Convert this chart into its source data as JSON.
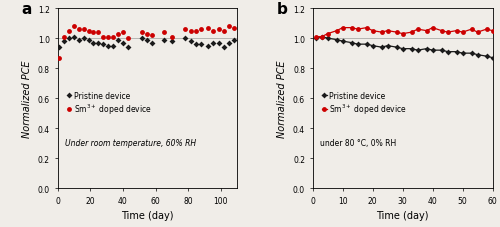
{
  "panel_a": {
    "label": "a",
    "xlabel": "Time (day)",
    "ylabel": "Normalized PCE",
    "xlim": [
      0,
      110
    ],
    "ylim": [
      0.0,
      1.2
    ],
    "yticks": [
      0.0,
      0.2,
      0.4,
      0.6,
      0.8,
      1.0,
      1.2
    ],
    "xticks": [
      0,
      20,
      40,
      60,
      80,
      100
    ],
    "annotation": "Under room temperature, 60% RH",
    "hline": 1.0,
    "has_lines": false,
    "pristine_x": [
      1,
      4,
      7,
      10,
      13,
      16,
      19,
      22,
      25,
      28,
      31,
      34,
      37,
      40,
      43,
      52,
      55,
      58,
      65,
      70,
      78,
      82,
      85,
      88,
      92,
      95,
      99,
      102,
      105,
      108
    ],
    "pristine_y": [
      0.94,
      0.98,
      1.0,
      1.01,
      0.99,
      1.0,
      0.99,
      0.97,
      0.97,
      0.96,
      0.95,
      0.95,
      0.99,
      0.97,
      0.94,
      1.0,
      0.99,
      0.97,
      0.99,
      0.98,
      1.0,
      0.98,
      0.96,
      0.96,
      0.95,
      0.97,
      0.97,
      0.94,
      0.97,
      0.99
    ],
    "sm_x": [
      1,
      4,
      7,
      10,
      13,
      16,
      19,
      22,
      25,
      28,
      31,
      34,
      37,
      40,
      43,
      52,
      55,
      58,
      65,
      70,
      78,
      82,
      85,
      88,
      92,
      95,
      99,
      102,
      105,
      108
    ],
    "sm_y": [
      0.87,
      1.01,
      1.05,
      1.08,
      1.06,
      1.06,
      1.05,
      1.04,
      1.04,
      1.01,
      1.01,
      1.01,
      1.03,
      1.04,
      1.0,
      1.04,
      1.03,
      1.02,
      1.04,
      1.01,
      1.06,
      1.05,
      1.05,
      1.06,
      1.07,
      1.05,
      1.06,
      1.05,
      1.08,
      1.07
    ]
  },
  "panel_b": {
    "label": "b",
    "xlabel": "Time (day)",
    "ylabel": "Normalized PCE",
    "xlim": [
      0,
      60
    ],
    "ylim": [
      0.0,
      1.2
    ],
    "yticks": [
      0.0,
      0.2,
      0.4,
      0.6,
      0.8,
      1.0,
      1.2
    ],
    "xticks": [
      0,
      10,
      20,
      30,
      40,
      50,
      60
    ],
    "annotation": "under 80 °C, 0% RH",
    "hline": 1.0,
    "has_lines": true,
    "pristine_x": [
      1,
      3,
      5,
      8,
      10,
      13,
      15,
      18,
      20,
      23,
      25,
      28,
      30,
      33,
      35,
      38,
      40,
      43,
      45,
      48,
      50,
      53,
      55,
      58,
      60
    ],
    "pristine_y": [
      1.0,
      1.01,
      1.0,
      0.99,
      0.98,
      0.97,
      0.96,
      0.96,
      0.95,
      0.94,
      0.95,
      0.94,
      0.93,
      0.93,
      0.92,
      0.93,
      0.92,
      0.92,
      0.91,
      0.91,
      0.9,
      0.9,
      0.89,
      0.88,
      0.87
    ],
    "sm_x": [
      1,
      3,
      5,
      8,
      10,
      13,
      15,
      18,
      20,
      23,
      25,
      28,
      30,
      33,
      35,
      38,
      40,
      43,
      45,
      48,
      50,
      53,
      55,
      58,
      60
    ],
    "sm_y": [
      1.01,
      1.01,
      1.03,
      1.05,
      1.07,
      1.07,
      1.06,
      1.07,
      1.05,
      1.04,
      1.05,
      1.04,
      1.03,
      1.04,
      1.06,
      1.05,
      1.07,
      1.05,
      1.04,
      1.05,
      1.04,
      1.06,
      1.04,
      1.06,
      1.05
    ]
  },
  "pristine_color": "#1a1a1a",
  "sm_color": "#cc0000",
  "pristine_label": "Pristine device",
  "sm_label": "Sm$^{3+}$ doped device",
  "marker_size": 3.0,
  "line_width": 0.9,
  "bg_color": "#f0ede8",
  "font_size": 7,
  "legend_font_size": 5.5,
  "annotation_font_size": 5.5
}
